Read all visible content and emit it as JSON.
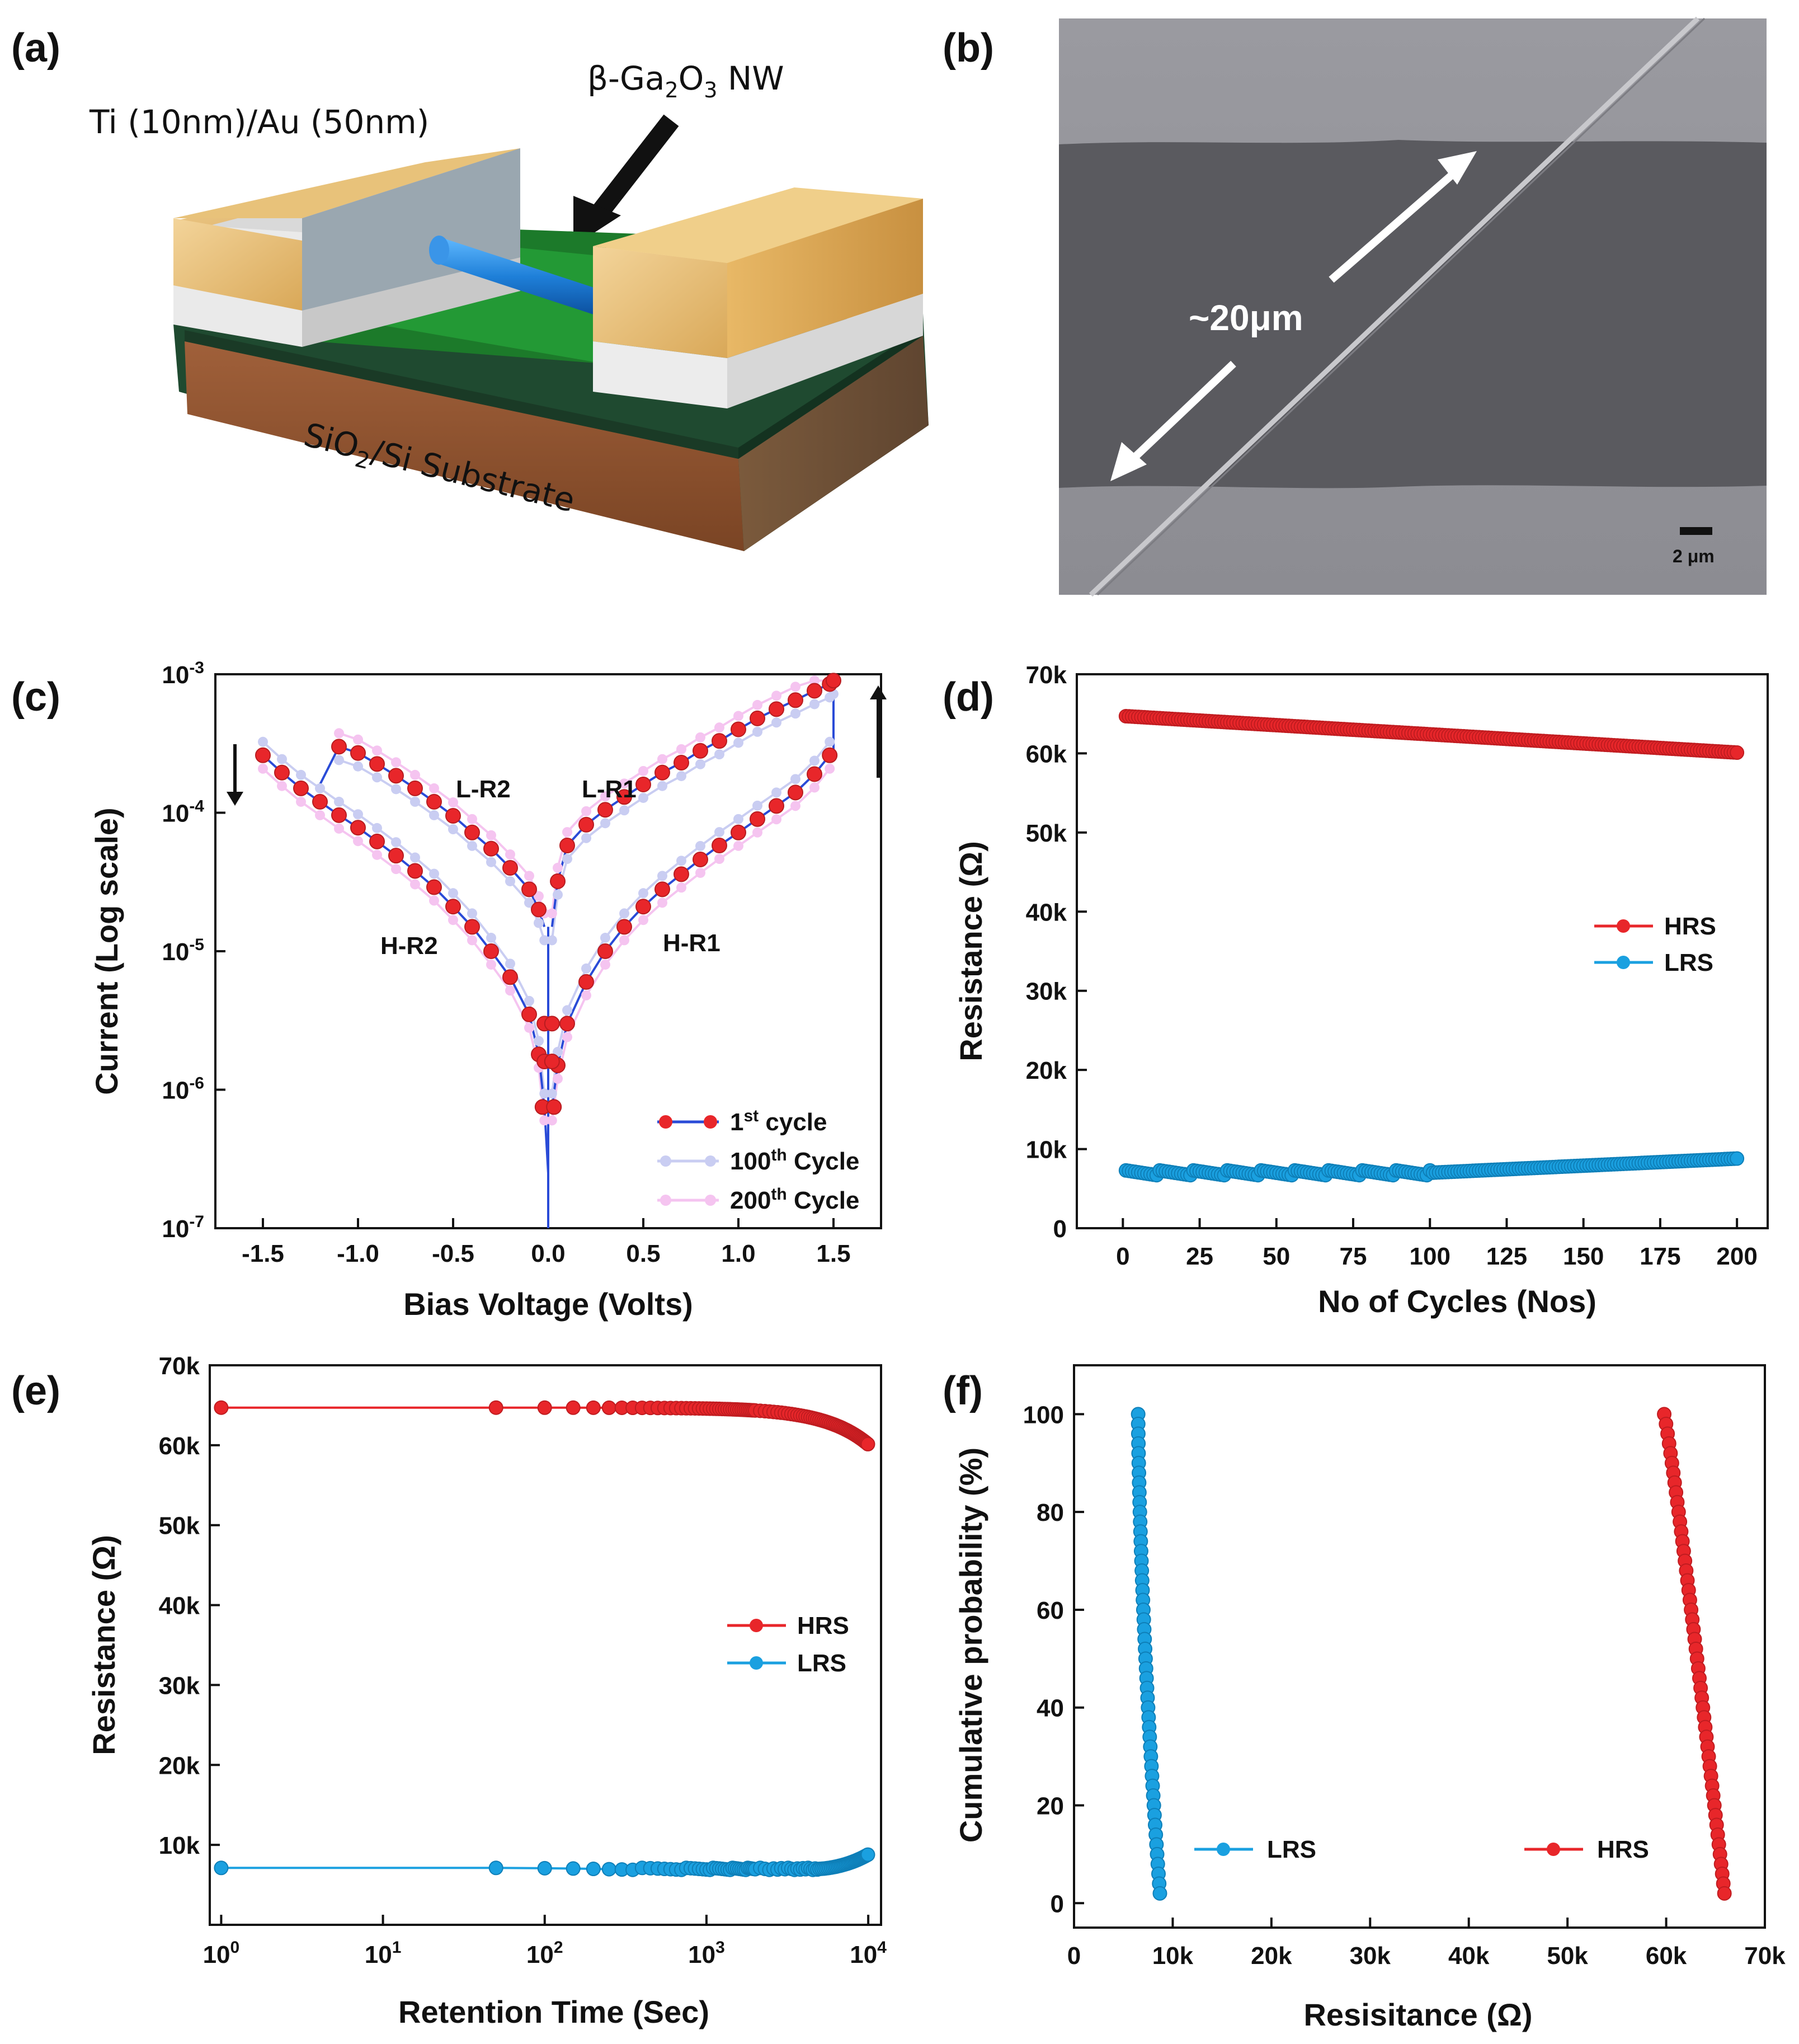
{
  "panels": {
    "a": {
      "label": "(a)",
      "electrode": "Ti (10nm)/Au (50nm)",
      "nanowire": "β-Ga2O3 NW",
      "substrate": "SiO2/Si Substrate"
    },
    "b": {
      "label": "(b)",
      "length": "~20μm",
      "scale_bar": "2 μm"
    }
  },
  "chart_data": [
    {
      "id": "c",
      "label": "(c)",
      "type": "line",
      "xlabel": "Bias Voltage (Volts)",
      "ylabel": "Current (Log scale)",
      "xlim": [
        -1.75,
        1.75
      ],
      "ylim": [
        1e-07,
        0.001
      ],
      "yscale": "log",
      "xticks": [
        -1.5,
        -1.0,
        -0.5,
        0.0,
        0.5,
        1.0,
        1.5
      ],
      "xtick_labels": [
        "-1.5",
        "-1.0",
        "-0.5",
        "0.0",
        "0.5",
        "1.0",
        "1.5"
      ],
      "yticks": [
        1e-07,
        1e-06,
        1e-05,
        0.0001,
        0.001
      ],
      "ytick_labels": [
        {
          "base": "10",
          "exp": "-7"
        },
        {
          "base": "10",
          "exp": "-6"
        },
        {
          "base": "10",
          "exp": "-5"
        },
        {
          "base": "10",
          "exp": "-4"
        },
        {
          "base": "10",
          "exp": "-3"
        }
      ],
      "annotations": [
        "L-R2",
        "L-R1",
        "H-R2",
        "H-R1"
      ],
      "legend": [
        {
          "name": "1st cycle",
          "color": "#e8262a",
          "line": "#2a4bd7"
        },
        {
          "name": "100th Cycle",
          "color": "#c9cdf2",
          "line": "#c9cdf2"
        },
        {
          "name": "200th Cycle",
          "color": "#f5c4f0",
          "line": "#f5c4f0"
        }
      ],
      "series": [
        {
          "name": "1st cycle",
          "branches": {
            "LR1_x": [
              0.02,
              0.05,
              0.1,
              0.2,
              0.3,
              0.4,
              0.5,
              0.6,
              0.7,
              0.8,
              0.9,
              1.0,
              1.1,
              1.2,
              1.3,
              1.4,
              1.48,
              1.5
            ],
            "LR1_y": [
              1.5e-05,
              3.2e-05,
              5.8e-05,
              8.2e-05,
              0.000105,
              0.00013,
              0.00016,
              0.000195,
              0.00023,
              0.00028,
              0.00033,
              0.0004,
              0.00048,
              0.00056,
              0.00065,
              0.00076,
              0.00085,
              0.0009
            ],
            "HR1_x": [
              0.02,
              0.05,
              0.1,
              0.2,
              0.3,
              0.4,
              0.5,
              0.6,
              0.7,
              0.8,
              0.9,
              1.0,
              1.1,
              1.2,
              1.3,
              1.4,
              1.48
            ],
            "HR1_y": [
              7.5e-07,
              1.5e-06,
              3e-06,
              6e-06,
              1e-05,
              1.5e-05,
              2.1e-05,
              2.8e-05,
              3.6e-05,
              4.6e-05,
              5.8e-05,
              7.2e-05,
              9e-05,
              0.000112,
              0.00014,
              0.00019,
              0.00026
            ],
            "LR2_x": [
              -0.02,
              -0.05,
              -0.1,
              -0.2,
              -0.3,
              -0.4,
              -0.5,
              -0.6,
              -0.7,
              -0.8,
              -0.9,
              -1.0,
              -1.1
            ],
            "LR2_y": [
              1.5e-05,
              2e-05,
              2.8e-05,
              4e-05,
              5.5e-05,
              7.2e-05,
              9.5e-05,
              0.00012,
              0.00015,
              0.000185,
              0.000225,
              0.00027,
              0.0003
            ],
            "HR2_x": [
              -0.02,
              -0.05,
              -0.1,
              -0.2,
              -0.3,
              -0.4,
              -0.5,
              -0.6,
              -0.7,
              -0.8,
              -0.9,
              -1.0,
              -1.1,
              -1.2,
              -1.3,
              -1.4,
              -1.5
            ],
            "HR2_y": [
              7.5e-07,
              1.8e-06,
              3.5e-06,
              6.5e-06,
              1e-05,
              1.5e-05,
              2.1e-05,
              2.9e-05,
              3.8e-05,
              4.9e-05,
              6.2e-05,
              7.8e-05,
              9.6e-05,
              0.00012,
              0.00015,
              0.000195,
              0.00026
            ]
          }
        }
      ]
    },
    {
      "id": "d",
      "label": "(d)",
      "type": "line",
      "xlabel": "No of Cycles (Nos)",
      "ylabel": "Resistance (Ω)",
      "xlim": [
        -15,
        210
      ],
      "ylim": [
        0,
        70000
      ],
      "xticks": [
        0,
        25,
        50,
        75,
        100,
        125,
        150,
        175,
        200
      ],
      "xtick_labels": [
        "0",
        "25",
        "50",
        "75",
        "100",
        "125",
        "150",
        "175",
        "200"
      ],
      "yticks": [
        0,
        10000,
        20000,
        30000,
        40000,
        50000,
        60000,
        70000
      ],
      "ytick_labels": [
        "0",
        "10k",
        "20k",
        "30k",
        "40k",
        "50k",
        "60k",
        "70k"
      ],
      "legend": [
        {
          "name": "HRS",
          "color": "#e8262a"
        },
        {
          "name": "LRS",
          "color": "#1aa0e0"
        }
      ],
      "series": [
        {
          "name": "HRS",
          "x_start": 1,
          "x_end": 200,
          "y_start": 64700,
          "y_end": 60100
        },
        {
          "name": "LRS",
          "x_start": 1,
          "x_end": 200,
          "y_start": 7000,
          "y_mid_x": 100,
          "y_mid": 7000,
          "y_end": 8800
        }
      ]
    },
    {
      "id": "e",
      "label": "(e)",
      "type": "line",
      "xlabel": "Retention Time (Sec)",
      "ylabel": "Resistance (Ω)",
      "xscale": "log",
      "xlim": [
        0.85,
        12000
      ],
      "ylim": [
        0,
        70000
      ],
      "xticks": [
        1,
        10,
        100,
        1000,
        10000
      ],
      "xtick_labels": [
        {
          "base": "10",
          "exp": "0"
        },
        {
          "base": "10",
          "exp": "1"
        },
        {
          "base": "10",
          "exp": "2"
        },
        {
          "base": "10",
          "exp": "3"
        },
        {
          "base": "10",
          "exp": "4"
        }
      ],
      "yticks": [
        10000,
        20000,
        30000,
        40000,
        50000,
        60000,
        70000
      ],
      "ytick_labels": [
        "10k",
        "20k",
        "30k",
        "40k",
        "50k",
        "60k",
        "70k"
      ],
      "legend": [
        {
          "name": "HRS",
          "color": "#e8262a"
        },
        {
          "name": "LRS",
          "color": "#1aa0e0"
        }
      ],
      "series": [
        {
          "name": "HRS",
          "y_start": 64700,
          "y_end": 60100
        },
        {
          "name": "LRS",
          "y_start": 7000,
          "y_end": 8800
        }
      ]
    },
    {
      "id": "f",
      "label": "(f)",
      "type": "scatter",
      "xlabel": "Resisitance (Ω)",
      "ylabel": "Cumulative probability (%)",
      "xlim": [
        0,
        70000
      ],
      "ylim": [
        -5,
        110
      ],
      "xticks": [
        0,
        10000,
        20000,
        30000,
        40000,
        50000,
        60000,
        70000
      ],
      "xtick_labels": [
        "0",
        "10k",
        "20k",
        "30k",
        "40k",
        "50k",
        "60k",
        "70k"
      ],
      "yticks": [
        0,
        20,
        40,
        60,
        80,
        100
      ],
      "ytick_labels": [
        "0",
        "20",
        "40",
        "60",
        "80",
        "100"
      ],
      "legend": [
        {
          "name": "LRS",
          "color": "#1aa0e0"
        },
        {
          "name": "HRS",
          "color": "#e8262a"
        }
      ],
      "series": [
        {
          "name": "LRS",
          "x_at_p100": 6500,
          "x_at_p2": 8700
        },
        {
          "name": "HRS",
          "x_at_p100": 59800,
          "x_at_p2": 65900
        }
      ]
    }
  ]
}
